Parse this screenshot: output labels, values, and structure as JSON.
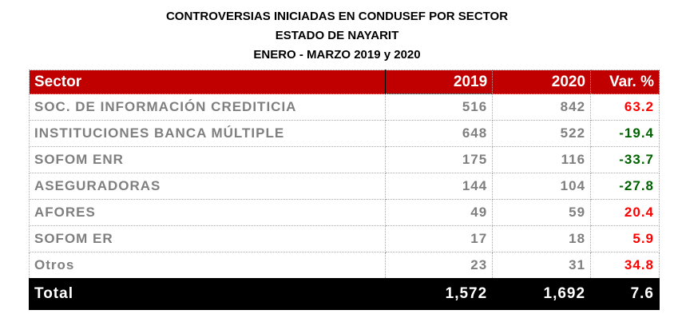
{
  "title": [
    "CONTROVERSIAS INICIADAS EN CONDUSEF POR SECTOR",
    "ESTADO DE NAYARIT",
    "ENERO - MARZO 2019 y 2020"
  ],
  "headers": {
    "sector": "Sector",
    "y2019": "2019",
    "y2020": "2020",
    "var": "Var. %"
  },
  "rows": [
    {
      "sector": "SOC. DE INFORMACIÓN CREDITICIA",
      "y2019": "516",
      "y2020": "842",
      "var": "63.2",
      "sign": "pos"
    },
    {
      "sector": "INSTITUCIONES BANCA MÚLTIPLE",
      "y2019": "648",
      "y2020": "522",
      "var": "-19.4",
      "sign": "neg"
    },
    {
      "sector": "SOFOM ENR",
      "y2019": "175",
      "y2020": "116",
      "var": "-33.7",
      "sign": "neg"
    },
    {
      "sector": "ASEGURADORAS",
      "y2019": "144",
      "y2020": "104",
      "var": "-27.8",
      "sign": "neg"
    },
    {
      "sector": "AFORES",
      "y2019": "49",
      "y2020": "59",
      "var": "20.4",
      "sign": "pos"
    },
    {
      "sector": "SOFOM ER",
      "y2019": "17",
      "y2020": "18",
      "var": "5.9",
      "sign": "pos"
    },
    {
      "sector": "Otros",
      "y2019": "23",
      "y2020": "31",
      "var": "34.8",
      "sign": "pos"
    }
  ],
  "total": {
    "sector": "Total",
    "y2019": "1,572",
    "y2020": "1,692",
    "var": "7.6"
  },
  "colors": {
    "header": "#c00000",
    "positive": "#ff0000",
    "negative": "#006100"
  }
}
